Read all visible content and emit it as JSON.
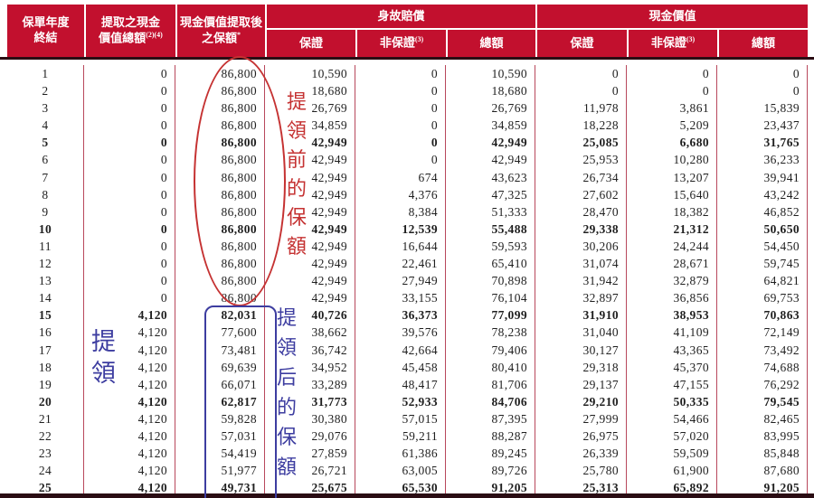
{
  "header": {
    "col_year": {
      "line1": "保單年度",
      "line2": "終結"
    },
    "col_withdrawn": {
      "line1": "提取之現金",
      "line2": "價值總額",
      "sup": "(2)(4)"
    },
    "col_suminsured": {
      "line1": "現金價值提取後",
      "line2": "之保額",
      "sup": "*"
    },
    "group_death": "身故賠償",
    "group_cash": "現金價值",
    "sub_guaranteed": "保證",
    "sub_nonguaranteed": {
      "text": "非保證",
      "sup": "(3)"
    },
    "sub_total": "總額"
  },
  "table": {
    "rows": [
      {
        "bold": false,
        "cells": [
          "1",
          "0",
          "86,800",
          "10,590",
          "0",
          "10,590",
          "0",
          "0",
          "0"
        ]
      },
      {
        "bold": false,
        "cells": [
          "2",
          "0",
          "86,800",
          "18,680",
          "0",
          "18,680",
          "0",
          "0",
          "0"
        ]
      },
      {
        "bold": false,
        "cells": [
          "3",
          "0",
          "86,800",
          "26,769",
          "0",
          "26,769",
          "11,978",
          "3,861",
          "15,839"
        ]
      },
      {
        "bold": false,
        "cells": [
          "4",
          "0",
          "86,800",
          "34,859",
          "0",
          "34,859",
          "18,228",
          "5,209",
          "23,437"
        ]
      },
      {
        "bold": true,
        "cells": [
          "5",
          "0",
          "86,800",
          "42,949",
          "0",
          "42,949",
          "25,085",
          "6,680",
          "31,765"
        ]
      },
      {
        "bold": false,
        "cells": [
          "6",
          "0",
          "86,800",
          "42,949",
          "0",
          "42,949",
          "25,953",
          "10,280",
          "36,233"
        ]
      },
      {
        "bold": false,
        "cells": [
          "7",
          "0",
          "86,800",
          "42,949",
          "674",
          "43,623",
          "26,734",
          "13,207",
          "39,941"
        ]
      },
      {
        "bold": false,
        "cells": [
          "8",
          "0",
          "86,800",
          "42,949",
          "4,376",
          "47,325",
          "27,602",
          "15,640",
          "43,242"
        ]
      },
      {
        "bold": false,
        "cells": [
          "9",
          "0",
          "86,800",
          "42,949",
          "8,384",
          "51,333",
          "28,470",
          "18,382",
          "46,852"
        ]
      },
      {
        "bold": true,
        "cells": [
          "10",
          "0",
          "86,800",
          "42,949",
          "12,539",
          "55,488",
          "29,338",
          "21,312",
          "50,650"
        ]
      },
      {
        "bold": false,
        "cells": [
          "11",
          "0",
          "86,800",
          "42,949",
          "16,644",
          "59,593",
          "30,206",
          "24,244",
          "54,450"
        ]
      },
      {
        "bold": false,
        "cells": [
          "12",
          "0",
          "86,800",
          "42,949",
          "22,461",
          "65,410",
          "31,074",
          "28,671",
          "59,745"
        ]
      },
      {
        "bold": false,
        "cells": [
          "13",
          "0",
          "86,800",
          "42,949",
          "27,949",
          "70,898",
          "31,942",
          "32,879",
          "64,821"
        ]
      },
      {
        "bold": false,
        "cells": [
          "14",
          "0",
          "86,800",
          "42,949",
          "33,155",
          "76,104",
          "32,897",
          "36,856",
          "69,753"
        ]
      },
      {
        "bold": true,
        "cells": [
          "15",
          "4,120",
          "82,031",
          "40,726",
          "36,373",
          "77,099",
          "31,910",
          "38,953",
          "70,863"
        ]
      },
      {
        "bold": false,
        "cells": [
          "16",
          "4,120",
          "77,600",
          "38,662",
          "39,576",
          "78,238",
          "31,040",
          "41,109",
          "72,149"
        ]
      },
      {
        "bold": false,
        "cells": [
          "17",
          "4,120",
          "73,481",
          "36,742",
          "42,664",
          "79,406",
          "30,127",
          "43,365",
          "73,492"
        ]
      },
      {
        "bold": false,
        "cells": [
          "18",
          "4,120",
          "69,639",
          "34,952",
          "45,458",
          "80,410",
          "29,318",
          "45,370",
          "74,688"
        ]
      },
      {
        "bold": false,
        "cells": [
          "19",
          "4,120",
          "66,071",
          "33,289",
          "48,417",
          "81,706",
          "29,137",
          "47,155",
          "76,292"
        ]
      },
      {
        "bold": true,
        "cells": [
          "20",
          "4,120",
          "62,817",
          "31,773",
          "52,933",
          "84,706",
          "29,210",
          "50,335",
          "79,545"
        ]
      },
      {
        "bold": false,
        "cells": [
          "21",
          "4,120",
          "59,828",
          "30,380",
          "57,015",
          "87,395",
          "27,999",
          "54,466",
          "82,465"
        ]
      },
      {
        "bold": false,
        "cells": [
          "22",
          "4,120",
          "57,031",
          "29,076",
          "59,211",
          "88,287",
          "26,975",
          "57,020",
          "83,995"
        ]
      },
      {
        "bold": false,
        "cells": [
          "23",
          "4,120",
          "54,419",
          "27,859",
          "61,386",
          "89,245",
          "26,339",
          "59,509",
          "85,848"
        ]
      },
      {
        "bold": false,
        "cells": [
          "24",
          "4,120",
          "51,977",
          "26,721",
          "63,005",
          "89,726",
          "25,780",
          "61,900",
          "87,680"
        ]
      },
      {
        "bold": true,
        "cells": [
          "25",
          "4,120",
          "49,731",
          "25,675",
          "65,530",
          "91,205",
          "25,313",
          "65,892",
          "91,205"
        ]
      }
    ]
  },
  "annotations": {
    "red_note": "提領前的保額",
    "blue_note": "提領后的保額",
    "withdraw_note": "提領"
  },
  "colors": {
    "header_red": "#c2102e",
    "divider_red": "#b8485c",
    "annotation_red": "#c53232",
    "annotation_blue": "#3d3da0",
    "dark_rule": "#2a0c13"
  }
}
